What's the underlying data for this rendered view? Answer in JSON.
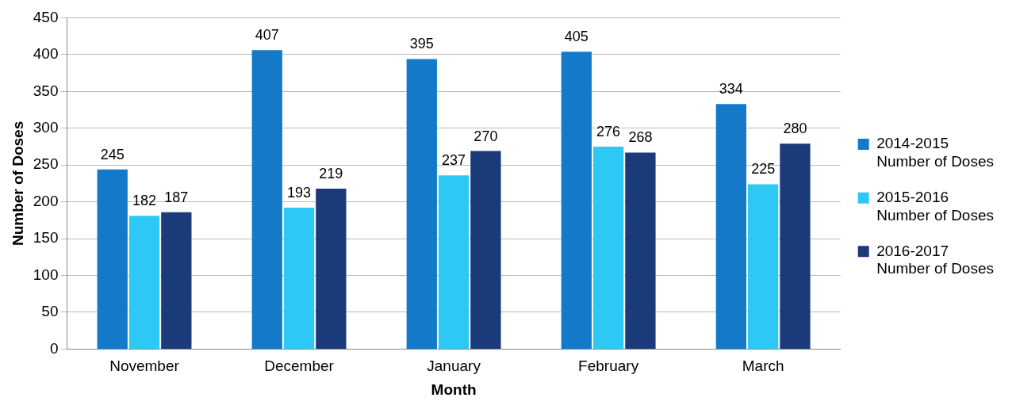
{
  "chart_data": {
    "type": "bar",
    "xlabel": "Month",
    "ylabel": "Number of Doses",
    "categories": [
      "November",
      "December",
      "January",
      "February",
      "March"
    ],
    "series": [
      {
        "name": "2014-2015 Number of Doses",
        "color": "#1479c9",
        "values": [
          245,
          407,
          395,
          405,
          334
        ]
      },
      {
        "name": "2015-2016 Number of Doses",
        "color": "#2ec8f5",
        "values": [
          182,
          193,
          237,
          276,
          225
        ]
      },
      {
        "name": "2016-2017 Number of Doses",
        "color": "#1b3a7a",
        "values": [
          187,
          219,
          270,
          268,
          280
        ]
      }
    ],
    "ylim": [
      0,
      450
    ],
    "yticks": [
      0,
      50,
      100,
      150,
      200,
      250,
      300,
      350,
      400,
      450
    ],
    "grid": "y",
    "legend": "right",
    "data_labels": true
  }
}
